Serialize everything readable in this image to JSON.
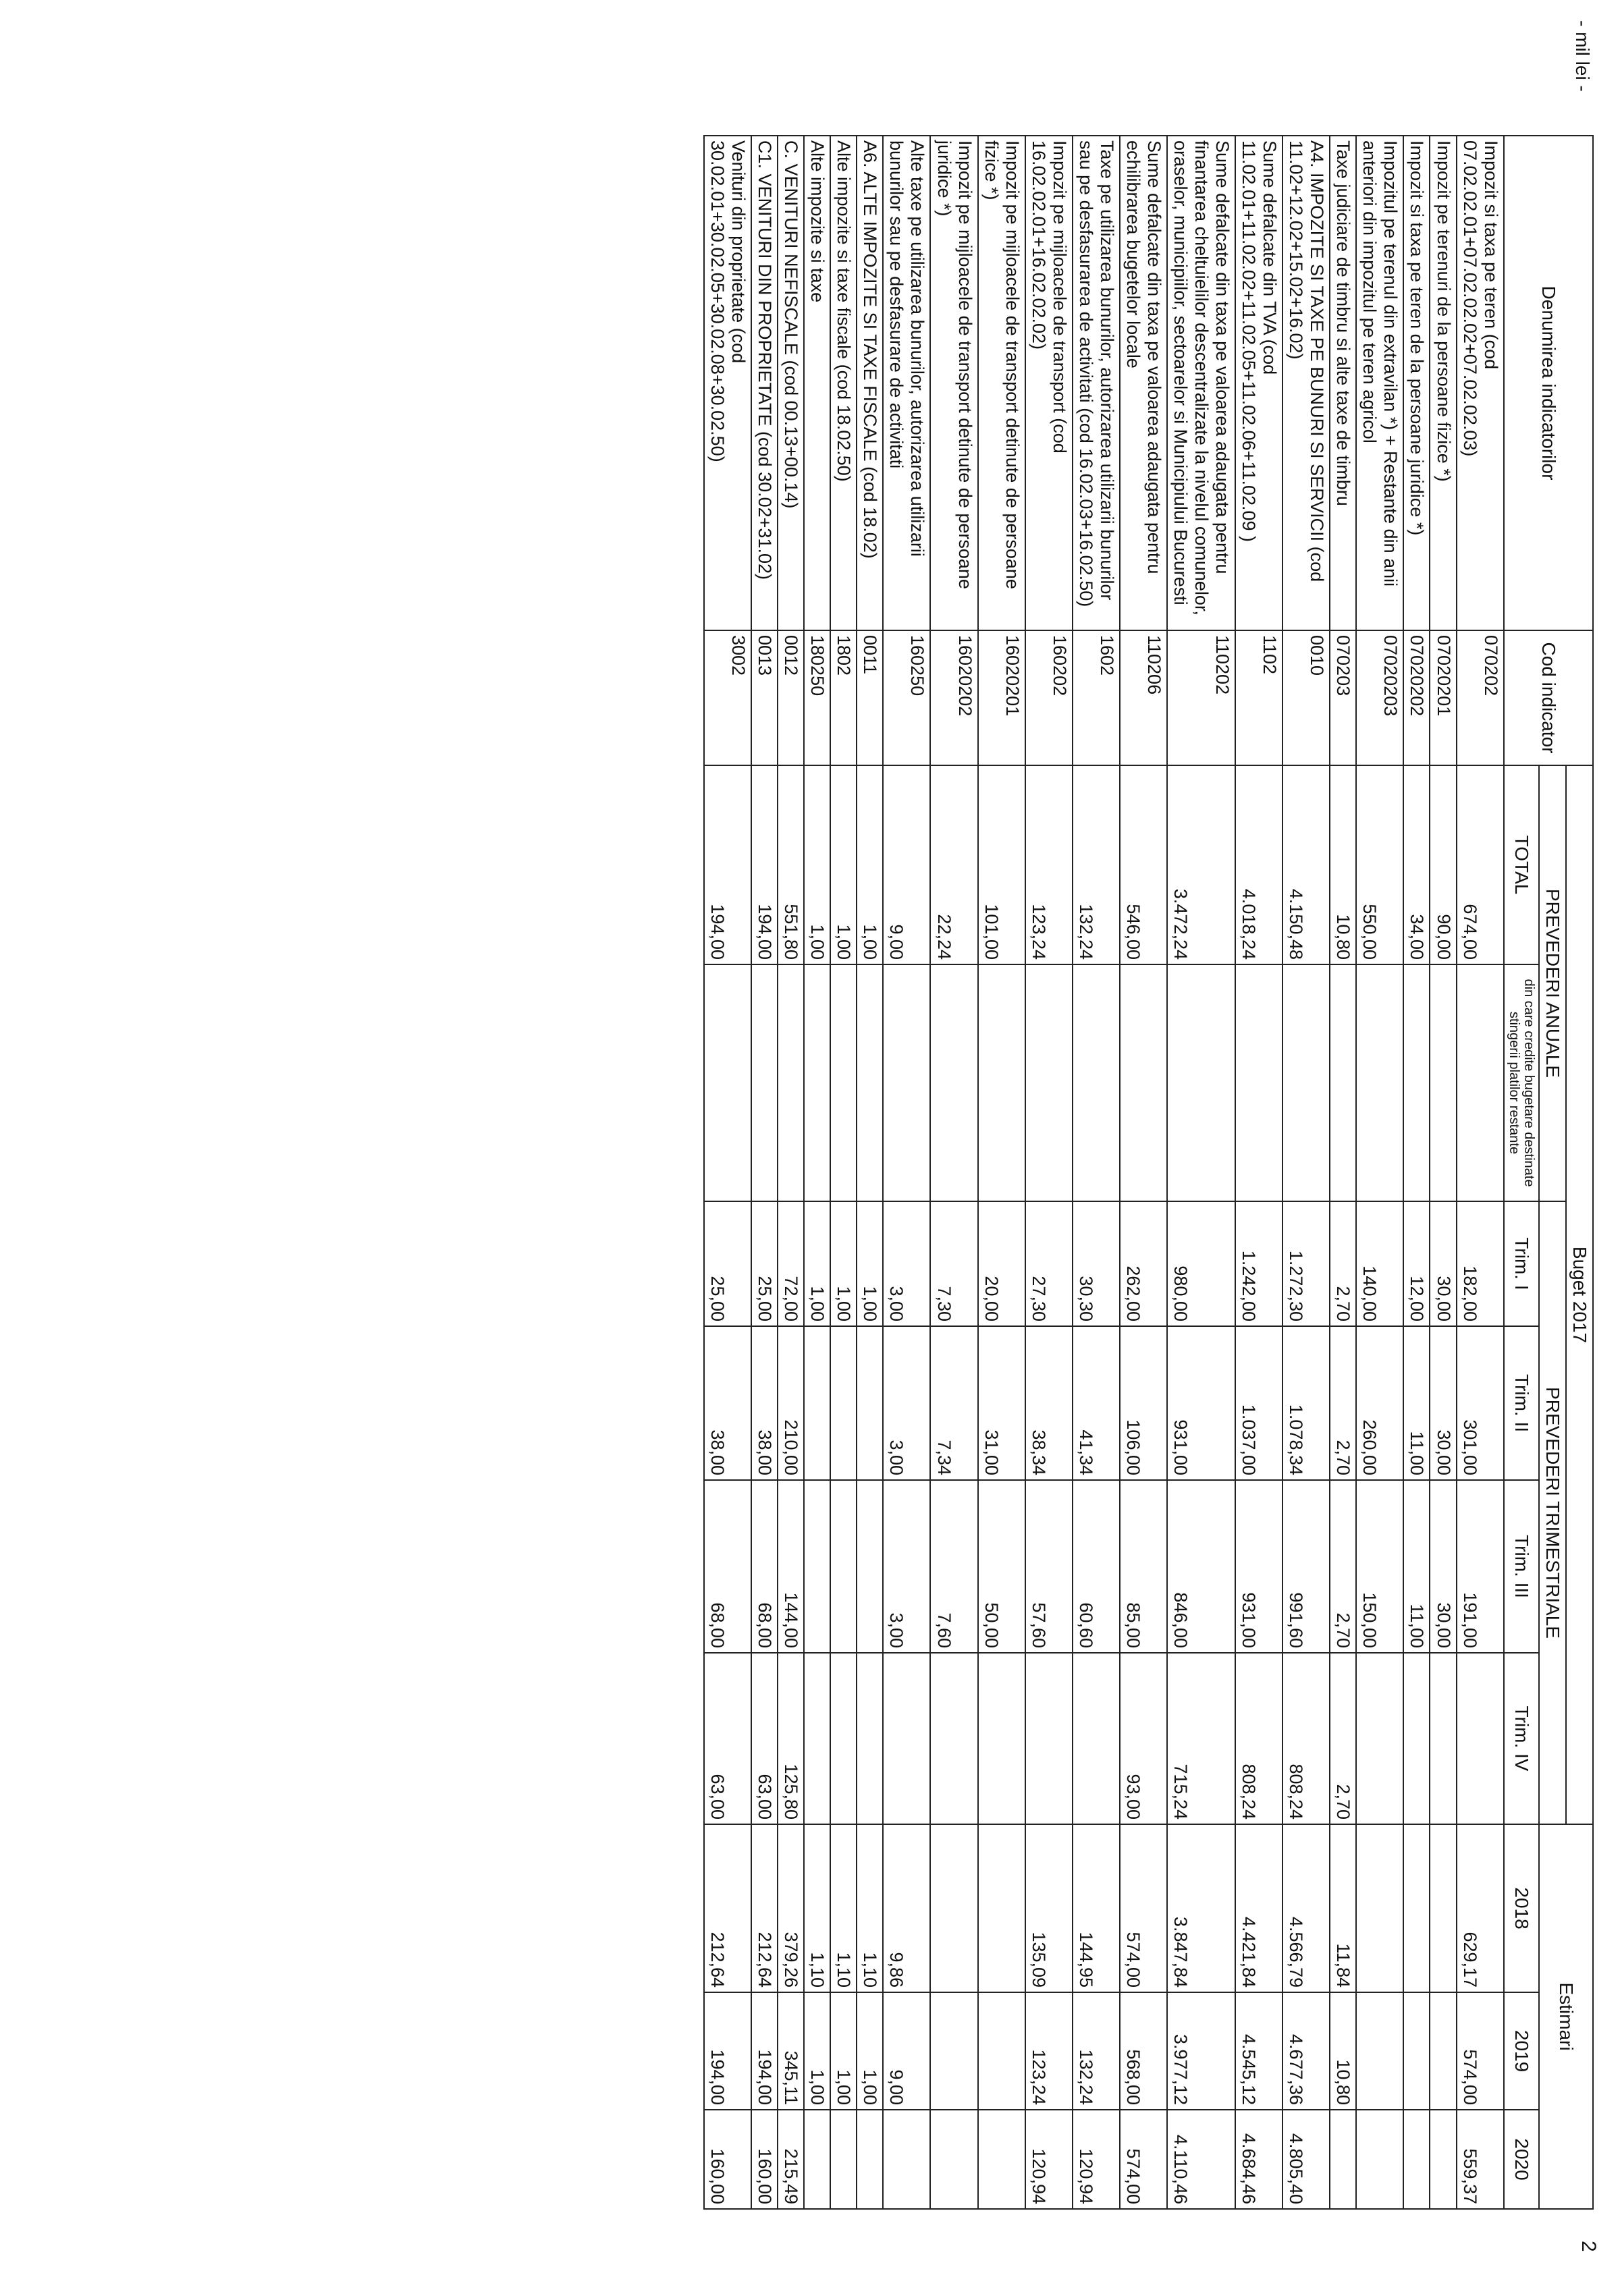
{
  "header": {
    "units": "- mil lei -",
    "page_number": "2"
  },
  "table": {
    "columns": {
      "name": "Denumirea indicatorilor",
      "code": "Cod indicator",
      "budget": "Buget 2017",
      "annual": "PREVEDERI ANUALE",
      "total": "TOTAL",
      "arrears": "din care credite bugetare destinate stingerii platilor restante",
      "quarterly": "PREVEDERI TRIMESTRIALE",
      "q1": "Trim. I",
      "q2": "Trim. II",
      "q3": "Trim. III",
      "q4": "Trim. IV",
      "estimates": "Estimari",
      "y2018": "2018",
      "y2019": "2019",
      "y2020": "2020"
    },
    "rows": [
      [
        "Impozit si taxa pe teren  (cod 07.02.02.01+07.02.02.02+07.02.02.03)",
        "070202",
        "674,00",
        null,
        "182,00",
        "301,00",
        "191,00",
        null,
        "629,17",
        "574,00",
        "559,37"
      ],
      [
        "Impozit pe terenuri de la persoane fizice *)",
        "07020201",
        "90,00",
        null,
        "30,00",
        "30,00",
        "30,00",
        null,
        null,
        null,
        null
      ],
      [
        "Impozit si taxa pe teren de la persoane juridice *)",
        "07020202",
        "34,00",
        null,
        "12,00",
        "11,00",
        "11,00",
        null,
        null,
        null,
        null
      ],
      [
        "Impozitul pe terenul din extravilan  *) + Restante din anii anteriori din impozitul pe teren agricol",
        "07020203",
        "550,00",
        null,
        "140,00",
        "260,00",
        "150,00",
        null,
        null,
        null,
        null
      ],
      [
        "Taxe judiciare de timbru si alte taxe de timbru",
        "070203",
        "10,80",
        null,
        "2,70",
        "2,70",
        "2,70",
        "2,70",
        "11,84",
        "10,80",
        null
      ],
      [
        "A4.  IMPOZITE SI TAXE PE BUNURI SI SERVICII   (cod 11.02+12.02+15.02+16.02)",
        "0010",
        "4.150,48",
        null,
        "1.272,30",
        "1.078,34",
        "991,60",
        "808,24",
        "4.566,79",
        "4.677,36",
        "4.805,40"
      ],
      [
        "Sume defalcate din TVA  (cod 11.02.01+11.02.02+11.02.05+11.02.06+11.02.09 )",
        "1102",
        "4.018,24",
        null,
        "1.242,00",
        "1.037,00",
        "931,00",
        "808,24",
        "4.421,84",
        "4.545,12",
        "4.684,46"
      ],
      [
        "Sume defalcate din taxa pe valoarea adaugata pentru finantarea cheltuielilor descentralizate la nivelul comunelor, oraselor, municipiilor, sectoarelor si Municipiului Bucuresti",
        "110202",
        "3.472,24",
        null,
        "980,00",
        "931,00",
        "846,00",
        "715,24",
        "3.847,84",
        "3.977,12",
        "4.110,46"
      ],
      [
        "Sume defalcate din taxa pe valoarea adaugata pentru echilibrarea bugetelor locale",
        "110206",
        "546,00",
        null,
        "262,00",
        "106,00",
        "85,00",
        "93,00",
        "574,00",
        "568,00",
        "574,00"
      ],
      [
        "Taxe pe utilizarea bunurilor, autorizarea utilizarii bunurilor sau pe desfasurarea de activitati   (cod 16.02.03+16.02.50)",
        "1602",
        "132,24",
        null,
        "30,30",
        "41,34",
        "60,60",
        null,
        "144,95",
        "132,24",
        "120,94"
      ],
      [
        "Impozit pe mijloacele de transport  (cod 16.02.02.01+16.02.02.02)",
        "160202",
        "123,24",
        null,
        "27,30",
        "38,34",
        "57,60",
        null,
        "135,09",
        "123,24",
        "120,94"
      ],
      [
        "Impozit pe mijloacele de transport detinute de persoane fizice *)",
        "16020201",
        "101,00",
        null,
        "20,00",
        "31,00",
        "50,00",
        null,
        null,
        null,
        null
      ],
      [
        "Impozit pe mijloacele de transport detinute de persoane juridice *)",
        "16020202",
        "22,24",
        null,
        "7,30",
        "7,34",
        "7,60",
        null,
        null,
        null,
        null
      ],
      [
        "Alte taxe pe utilizarea bunurilor, autorizarea utilizarii bunurilor sau pe desfasurare de activitati",
        "160250",
        "9,00",
        null,
        "3,00",
        "3,00",
        "3,00",
        null,
        "9,86",
        "9,00",
        null
      ],
      [
        "A6.  ALTE IMPOZITE SI  TAXE  FISCALE  (cod 18.02)",
        "0011",
        "1,00",
        null,
        "1,00",
        null,
        null,
        null,
        "1,10",
        "1,00",
        null
      ],
      [
        "Alte impozite si taxe fiscale   (cod 18.02.50)",
        "1802",
        "1,00",
        null,
        "1,00",
        null,
        null,
        null,
        "1,10",
        "1,00",
        null
      ],
      [
        "Alte impozite si taxe",
        "180250",
        "1,00",
        null,
        "1,00",
        null,
        null,
        null,
        "1,10",
        "1,00",
        null
      ],
      [
        "C.  VENITURI NEFISCALE   (cod 00.13+00.14)",
        "0012",
        "551,80",
        null,
        "72,00",
        "210,00",
        "144,00",
        "125,80",
        "379,26",
        "345,11",
        "215,49"
      ],
      [
        "C1.  VENITURI DIN PROPRIETATE  (cod 30.02+31.02)",
        "0013",
        "194,00",
        null,
        "25,00",
        "38,00",
        "68,00",
        "63,00",
        "212,64",
        "194,00",
        "160,00"
      ],
      [
        "Venituri din proprietate  (cod 30.02.01+30.02.05+30.02.08+30.02.50)",
        "3002",
        "194,00",
        null,
        "25,00",
        "38,00",
        "68,00",
        "63,00",
        "212,64",
        "194,00",
        "160,00"
      ]
    ]
  }
}
